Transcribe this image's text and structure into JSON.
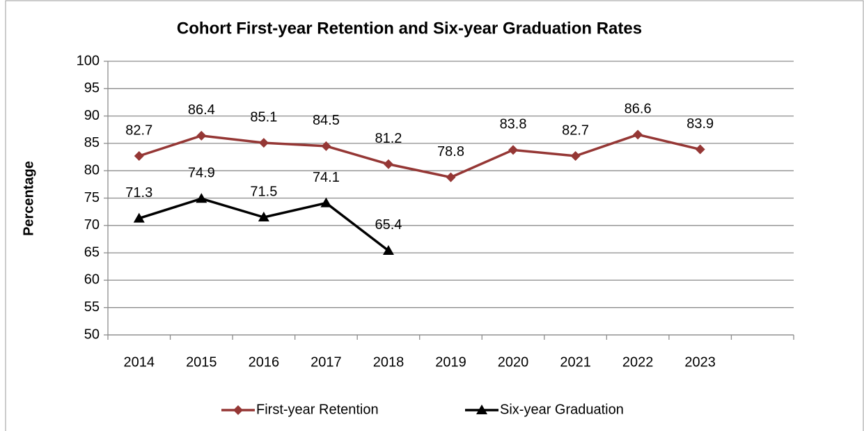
{
  "chart_data": {
    "type": "line",
    "title": "Cohort First-year Retention and Six-year Graduation Rates",
    "y_label": "Percentage",
    "categories": [
      "2014",
      "2015",
      "2016",
      "2017",
      "2018",
      "2019",
      "2020",
      "2021",
      "2022",
      "2023",
      null
    ],
    "series": [
      {
        "name": "First-year Retention",
        "color": "#953735",
        "marker": "diamond",
        "values": [
          82.7,
          86.4,
          85.1,
          84.5,
          81.2,
          78.8,
          83.8,
          82.7,
          86.6,
          83.9,
          null
        ]
      },
      {
        "name": "Six-year Graduation",
        "color": "#000000",
        "marker": "triangle",
        "values": [
          71.3,
          74.9,
          71.5,
          74.1,
          65.4,
          null,
          null,
          null,
          null,
          null,
          null
        ]
      }
    ],
    "ylim": [
      50,
      100
    ],
    "yticks": [
      50,
      55,
      60,
      65,
      70,
      75,
      80,
      85,
      90,
      95,
      100
    ],
    "grid": true,
    "legend": "bottom"
  }
}
